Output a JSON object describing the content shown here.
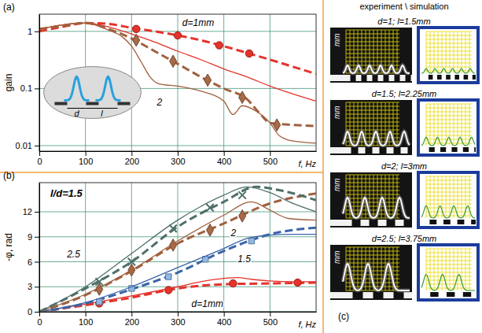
{
  "chart_data": [
    {
      "type": "line",
      "title": "(a)",
      "xlabel": "f, Hz",
      "ylabel": "gain",
      "xlim": [
        0,
        600
      ],
      "xticks": [
        0,
        100,
        200,
        300,
        400,
        500
      ],
      "ylim": [
        0.008,
        2
      ],
      "yticks": [
        0.01,
        0.1,
        1
      ],
      "log": "y",
      "grid": true,
      "series": [
        {
          "type": "line",
          "color": "#e5332a",
          "line_style": "dashed",
          "x": [
            0,
            50,
            100,
            150,
            200,
            250,
            300,
            350,
            400,
            450,
            500,
            550,
            600
          ],
          "values": [
            1.0,
            1.2,
            1.4,
            1.35,
            1.15,
            1.0,
            0.85,
            0.7,
            0.55,
            0.42,
            0.32,
            0.24,
            0.18
          ]
        },
        {
          "type": "scatter",
          "color": "#e5332a",
          "marker": "circle",
          "x": [
            210,
            300,
            390,
            455
          ],
          "values": [
            1.1,
            0.85,
            0.57,
            0.41
          ]
        },
        {
          "type": "line",
          "color": "#e5332a",
          "line_style": "solid",
          "x": [
            0,
            50,
            100,
            150,
            200,
            250,
            300,
            350,
            400,
            450,
            500,
            550,
            600
          ],
          "values": [
            1.1,
            1.3,
            1.4,
            1.2,
            0.9,
            0.65,
            0.45,
            0.32,
            0.22,
            0.16,
            0.11,
            0.08,
            0.06
          ]
        },
        {
          "type": "line",
          "color": "#a0603e",
          "line_style": "dashed",
          "x": [
            0,
            50,
            100,
            150,
            200,
            250,
            300,
            350,
            400,
            450,
            480,
            500,
            550,
            600
          ],
          "values": [
            1.1,
            1.25,
            1.4,
            1.1,
            0.75,
            0.45,
            0.27,
            0.16,
            0.1,
            0.065,
            0.035,
            0.025,
            0.023,
            0.022
          ]
        },
        {
          "type": "scatter",
          "color": "#a86a48",
          "marker": "diamond",
          "x": [
            210,
            290,
            365,
            440,
            515
          ],
          "values": [
            0.7,
            0.3,
            0.14,
            0.07,
            0.023
          ]
        },
        {
          "type": "line",
          "color": "#a0603e",
          "line_style": "solid",
          "x": [
            0,
            50,
            100,
            150,
            180,
            200,
            220,
            240,
            260,
            300,
            350,
            400,
            420,
            440,
            470,
            500,
            520,
            550,
            600
          ],
          "values": [
            1.1,
            1.3,
            1.4,
            1.05,
            0.8,
            0.55,
            0.3,
            0.16,
            0.12,
            0.11,
            0.09,
            0.06,
            0.035,
            0.05,
            0.04,
            0.025,
            0.015,
            0.012,
            0.011
          ]
        }
      ],
      "annotations": [
        {
          "text": "d=1mm",
          "x": 310,
          "y": 1.25
        },
        {
          "text": "2",
          "x": 255,
          "y": 0.05
        }
      ],
      "inset": {
        "labels": [
          "d",
          "l"
        ]
      }
    },
    {
      "type": "line",
      "title": "(b)",
      "subtitle": "l/d=1.5",
      "xlabel": "f, Hz",
      "ylabel": "-φ, rad",
      "xlim": [
        0,
        600
      ],
      "xticks": [
        0,
        100,
        200,
        300,
        400,
        500
      ],
      "ylim": [
        0,
        15.5
      ],
      "yticks": [
        0,
        3,
        6,
        9,
        12
      ],
      "grid": true,
      "series": [
        {
          "type": "line",
          "color": "#e5332a",
          "line_style": "dashed",
          "x": [
            0,
            100,
            200,
            300,
            400,
            500,
            600
          ],
          "values": [
            0,
            0.8,
            1.7,
            2.8,
            3.3,
            3.4,
            3.5
          ]
        },
        {
          "type": "scatter",
          "color": "#e5332a",
          "marker": "circle",
          "x": [
            130,
            280,
            420,
            560
          ],
          "values": [
            1.0,
            2.6,
            3.4,
            3.5
          ]
        },
        {
          "type": "line",
          "color": "#e5332a",
          "line_style": "solid",
          "x": [
            0,
            100,
            200,
            300,
            350,
            400,
            430,
            460,
            500,
            550,
            600
          ],
          "values": [
            0,
            0.9,
            1.9,
            3.0,
            3.6,
            4.0,
            4.1,
            3.9,
            3.7,
            3.6,
            3.6
          ]
        },
        {
          "type": "line",
          "color": "#3a64a8",
          "line_style": "dashed",
          "x": [
            0,
            100,
            200,
            300,
            400,
            500,
            600
          ],
          "values": [
            0,
            1.0,
            2.7,
            4.7,
            7.3,
            9.3,
            10.1
          ]
        },
        {
          "type": "scatter",
          "color": "#8fb8e8",
          "marker": "square",
          "x": [
            130,
            200,
            280,
            360,
            460
          ],
          "values": [
            1.2,
            2.8,
            4.2,
            6.3,
            8.5
          ]
        },
        {
          "type": "line",
          "color": "#3a64a8",
          "line_style": "solid",
          "x": [
            0,
            100,
            200,
            300,
            400,
            450,
            500,
            550,
            600
          ],
          "values": [
            0,
            1.1,
            3.0,
            5.3,
            7.6,
            8.8,
            9.2,
            9.3,
            9.3
          ]
        },
        {
          "type": "line",
          "color": "#a0603e",
          "line_style": "dashed",
          "x": [
            0,
            100,
            200,
            300,
            400,
            500,
            600
          ],
          "values": [
            0,
            2.0,
            4.9,
            8.2,
            10.6,
            13.0,
            14.2
          ]
        },
        {
          "type": "scatter",
          "color": "#a86a48",
          "marker": "diamond",
          "x": [
            130,
            200,
            290,
            370,
            440
          ],
          "values": [
            2.7,
            5.0,
            8.0,
            9.8,
            11.5
          ]
        },
        {
          "type": "line",
          "color": "#a0603e",
          "line_style": "solid",
          "x": [
            0,
            100,
            200,
            300,
            400,
            460,
            500,
            540,
            600
          ],
          "values": [
            0,
            2.1,
            5.0,
            8.5,
            11.6,
            13.2,
            12.2,
            11.2,
            11.0
          ]
        },
        {
          "type": "line",
          "color": "#4f6f6a",
          "line_style": "dashed",
          "x": [
            0,
            100,
            200,
            300,
            400,
            470,
            520,
            600
          ],
          "values": [
            0,
            2.8,
            6.0,
            10.2,
            13.2,
            15.0,
            14.6,
            13.4
          ]
        },
        {
          "type": "scatter",
          "color": "#4f6f6a",
          "marker": "cross",
          "x": [
            130,
            200,
            290,
            370,
            440
          ],
          "values": [
            3.6,
            6.0,
            10.0,
            12.5,
            14.0
          ]
        },
        {
          "type": "line",
          "color": "#4f6f6a",
          "line_style": "solid",
          "x": [
            0,
            100,
            200,
            300,
            400,
            450,
            500,
            550,
            600
          ],
          "values": [
            0,
            3.0,
            7.0,
            11.0,
            14.0,
            15.0,
            14.3,
            13.0,
            12.0
          ]
        }
      ],
      "annotations": [
        {
          "text": "2.5",
          "x": 60,
          "y": 6.5
        },
        {
          "text": "2",
          "x": 415,
          "y": 9.1
        },
        {
          "text": "1.5",
          "x": 430,
          "y": 6.0
        },
        {
          "text": "d=1mm",
          "x": 330,
          "y": 0.6
        }
      ]
    }
  ],
  "panel_c": {
    "label": "(c)",
    "header": "experiment \\ simulation",
    "unit": "mm",
    "rows": [
      {
        "title": "d=1; l=1.5mm"
      },
      {
        "title": "d=1.5; l=2.25mm"
      },
      {
        "title": "d=2; l=3mm"
      },
      {
        "title": "d=2.5; l=3.75mm"
      }
    ]
  }
}
